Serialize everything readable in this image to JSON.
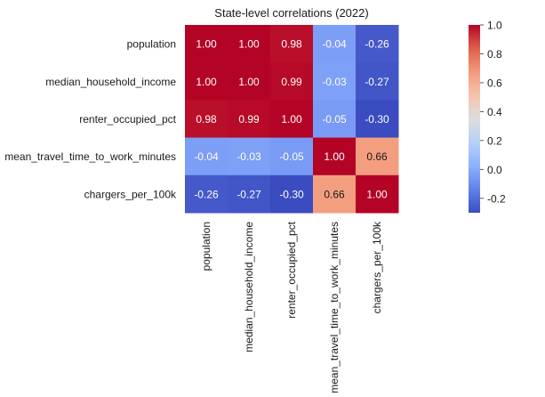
{
  "chart_data": {
    "type": "heatmap",
    "title": "State-level correlations (2022)",
    "row_labels": [
      "population",
      "median_household_income",
      "renter_occupied_pct",
      "mean_travel_time_to_work_minutes",
      "chargers_per_100k"
    ],
    "col_labels": [
      "population",
      "median_household_income",
      "renter_occupied_pct",
      "mean_travel_time_to_work_minutes",
      "chargers_per_100k"
    ],
    "values": [
      [
        1.0,
        1.0,
        0.98,
        -0.04,
        -0.26
      ],
      [
        1.0,
        1.0,
        0.99,
        -0.03,
        -0.27
      ],
      [
        0.98,
        0.99,
        1.0,
        -0.05,
        -0.3
      ],
      [
        -0.04,
        -0.03,
        -0.05,
        1.0,
        0.66
      ],
      [
        -0.26,
        -0.27,
        -0.3,
        0.66,
        1.0
      ]
    ],
    "cell_labels": [
      [
        "1.00",
        "1.00",
        "0.98",
        "-0.04",
        "-0.26"
      ],
      [
        "1.00",
        "1.00",
        "0.99",
        "-0.03",
        "-0.27"
      ],
      [
        "0.98",
        "0.99",
        "1.00",
        "-0.05",
        "-0.30"
      ],
      [
        "-0.04",
        "-0.03",
        "-0.05",
        "1.00",
        "0.66"
      ],
      [
        "-0.26",
        "-0.27",
        "-0.30",
        "0.66",
        "1.00"
      ]
    ],
    "colormap": "coolwarm",
    "colorbar": {
      "vmin": -0.3,
      "vmax": 1.0,
      "ticks": [
        1.0,
        0.8,
        0.6,
        0.4,
        0.2,
        0.0,
        -0.2
      ],
      "tick_labels": [
        "1.0",
        "0.8",
        "0.6",
        "0.4",
        "0.2",
        "0.0",
        "-0.2"
      ]
    }
  }
}
